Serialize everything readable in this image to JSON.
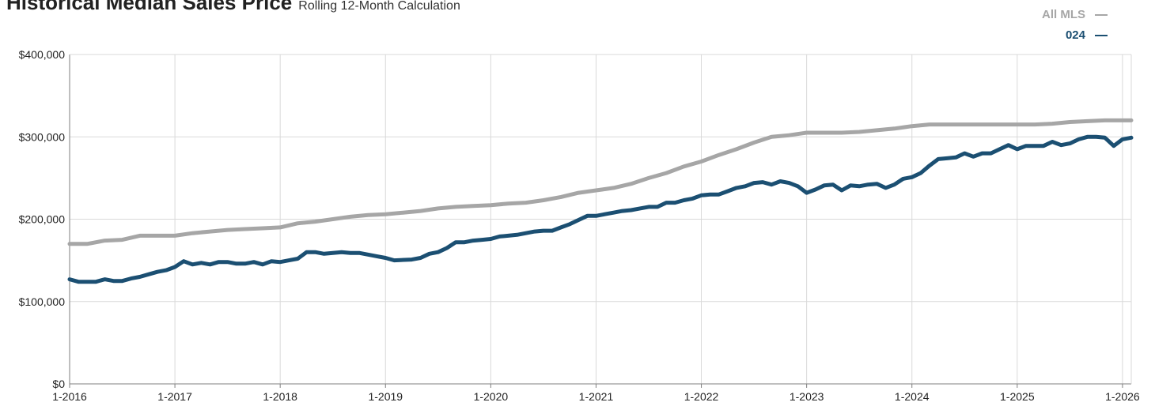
{
  "header": {
    "title": "Historical Median Sales Price",
    "subtitle": "Rolling 12-Month Calculation"
  },
  "colors": {
    "all_mls": "#a6a6a6",
    "area": "#1b4f72",
    "grid": "#d9d9d9",
    "axis": "#7f7f7f"
  },
  "chart_data": {
    "type": "line",
    "title": "Historical Median Sales Price",
    "subtitle": "Rolling 12-Month Calculation",
    "xlabel": "",
    "ylabel": "",
    "x_range": [
      "2016-01",
      "2026-02"
    ],
    "ylim": [
      0,
      400000
    ],
    "grid": true,
    "legend": "top-right",
    "y_ticks": [
      0,
      100000,
      200000,
      300000,
      400000
    ],
    "y_tick_labels": [
      "$0",
      "$100,000",
      "$200,000",
      "$300,000",
      "$400,000"
    ],
    "x_ticks": [
      "2016-01",
      "2017-01",
      "2018-01",
      "2019-01",
      "2020-01",
      "2021-01",
      "2022-01",
      "2023-01",
      "2024-01",
      "2025-01",
      "2026-01"
    ],
    "x_tick_labels": [
      "1-2016",
      "1-2017",
      "1-2018",
      "1-2019",
      "1-2020",
      "1-2021",
      "1-2022",
      "1-2023",
      "1-2024",
      "1-2025",
      "1-2026"
    ],
    "series": [
      {
        "name": "All MLS",
        "color": "#a6a6a6",
        "points": [
          [
            "2016-01",
            170000
          ],
          [
            "2016-03",
            170000
          ],
          [
            "2016-05",
            174000
          ],
          [
            "2016-07",
            175000
          ],
          [
            "2016-09",
            180000
          ],
          [
            "2016-11",
            180000
          ],
          [
            "2017-01",
            180000
          ],
          [
            "2017-03",
            183000
          ],
          [
            "2017-05",
            185000
          ],
          [
            "2017-07",
            187000
          ],
          [
            "2017-09",
            188000
          ],
          [
            "2017-11",
            189000
          ],
          [
            "2018-01",
            190000
          ],
          [
            "2018-03",
            195000
          ],
          [
            "2018-05",
            197000
          ],
          [
            "2018-07",
            200000
          ],
          [
            "2018-09",
            203000
          ],
          [
            "2018-11",
            205000
          ],
          [
            "2019-01",
            206000
          ],
          [
            "2019-03",
            208000
          ],
          [
            "2019-05",
            210000
          ],
          [
            "2019-07",
            213000
          ],
          [
            "2019-09",
            215000
          ],
          [
            "2019-11",
            216000
          ],
          [
            "2020-01",
            217000
          ],
          [
            "2020-03",
            219000
          ],
          [
            "2020-05",
            220000
          ],
          [
            "2020-07",
            223000
          ],
          [
            "2020-09",
            227000
          ],
          [
            "2020-11",
            232000
          ],
          [
            "2021-01",
            235000
          ],
          [
            "2021-03",
            238000
          ],
          [
            "2021-05",
            243000
          ],
          [
            "2021-07",
            250000
          ],
          [
            "2021-09",
            256000
          ],
          [
            "2021-11",
            264000
          ],
          [
            "2022-01",
            270000
          ],
          [
            "2022-03",
            278000
          ],
          [
            "2022-05",
            285000
          ],
          [
            "2022-07",
            293000
          ],
          [
            "2022-09",
            300000
          ],
          [
            "2022-11",
            302000
          ],
          [
            "2023-01",
            305000
          ],
          [
            "2023-03",
            305000
          ],
          [
            "2023-05",
            305000
          ],
          [
            "2023-07",
            306000
          ],
          [
            "2023-09",
            308000
          ],
          [
            "2023-11",
            310000
          ],
          [
            "2024-01",
            313000
          ],
          [
            "2024-03",
            315000
          ],
          [
            "2024-05",
            315000
          ],
          [
            "2024-07",
            315000
          ],
          [
            "2024-09",
            315000
          ],
          [
            "2024-11",
            315000
          ],
          [
            "2025-01",
            315000
          ],
          [
            "2025-03",
            315000
          ],
          [
            "2025-05",
            316000
          ],
          [
            "2025-07",
            318000
          ],
          [
            "2025-09",
            319000
          ],
          [
            "2025-11",
            320000
          ],
          [
            "2026-01",
            320000
          ],
          [
            "2026-02",
            320000
          ]
        ]
      },
      {
        "name": "024",
        "color": "#1b4f72",
        "points": [
          [
            "2016-01",
            127000
          ],
          [
            "2016-02",
            124000
          ],
          [
            "2016-04",
            124000
          ],
          [
            "2016-05",
            127000
          ],
          [
            "2016-06",
            125000
          ],
          [
            "2016-07",
            125000
          ],
          [
            "2016-08",
            128000
          ],
          [
            "2016-09",
            130000
          ],
          [
            "2016-10",
            133000
          ],
          [
            "2016-11",
            136000
          ],
          [
            "2016-12",
            138000
          ],
          [
            "2017-01",
            142000
          ],
          [
            "2017-02",
            149000
          ],
          [
            "2017-03",
            145000
          ],
          [
            "2017-04",
            147000
          ],
          [
            "2017-05",
            145000
          ],
          [
            "2017-06",
            148000
          ],
          [
            "2017-07",
            148000
          ],
          [
            "2017-08",
            146000
          ],
          [
            "2017-09",
            146000
          ],
          [
            "2017-10",
            148000
          ],
          [
            "2017-11",
            145000
          ],
          [
            "2017-12",
            149000
          ],
          [
            "2018-01",
            148000
          ],
          [
            "2018-02",
            150000
          ],
          [
            "2018-03",
            152000
          ],
          [
            "2018-04",
            160000
          ],
          [
            "2018-05",
            160000
          ],
          [
            "2018-06",
            158000
          ],
          [
            "2018-07",
            159000
          ],
          [
            "2018-08",
            160000
          ],
          [
            "2018-09",
            159000
          ],
          [
            "2018-10",
            159000
          ],
          [
            "2018-11",
            157000
          ],
          [
            "2018-12",
            155000
          ],
          [
            "2019-01",
            153000
          ],
          [
            "2019-02",
            150000
          ],
          [
            "2019-04",
            151000
          ],
          [
            "2019-05",
            153000
          ],
          [
            "2019-06",
            158000
          ],
          [
            "2019-07",
            160000
          ],
          [
            "2019-08",
            165000
          ],
          [
            "2019-09",
            172000
          ],
          [
            "2019-10",
            172000
          ],
          [
            "2019-11",
            174000
          ],
          [
            "2019-12",
            175000
          ],
          [
            "2020-01",
            176000
          ],
          [
            "2020-02",
            179000
          ],
          [
            "2020-03",
            180000
          ],
          [
            "2020-04",
            181000
          ],
          [
            "2020-05",
            183000
          ],
          [
            "2020-06",
            185000
          ],
          [
            "2020-07",
            186000
          ],
          [
            "2020-08",
            186000
          ],
          [
            "2020-09",
            190000
          ],
          [
            "2020-10",
            194000
          ],
          [
            "2020-11",
            199000
          ],
          [
            "2020-12",
            204000
          ],
          [
            "2021-01",
            204000
          ],
          [
            "2021-02",
            206000
          ],
          [
            "2021-03",
            208000
          ],
          [
            "2021-04",
            210000
          ],
          [
            "2021-05",
            211000
          ],
          [
            "2021-06",
            213000
          ],
          [
            "2021-07",
            215000
          ],
          [
            "2021-08",
            215000
          ],
          [
            "2021-09",
            220000
          ],
          [
            "2021-10",
            220000
          ],
          [
            "2021-11",
            223000
          ],
          [
            "2021-12",
            225000
          ],
          [
            "2022-01",
            229000
          ],
          [
            "2022-02",
            230000
          ],
          [
            "2022-03",
            230000
          ],
          [
            "2022-04",
            234000
          ],
          [
            "2022-05",
            238000
          ],
          [
            "2022-06",
            240000
          ],
          [
            "2022-07",
            244000
          ],
          [
            "2022-08",
            245000
          ],
          [
            "2022-09",
            242000
          ],
          [
            "2022-10",
            246000
          ],
          [
            "2022-11",
            244000
          ],
          [
            "2022-12",
            240000
          ],
          [
            "2023-01",
            232000
          ],
          [
            "2023-02",
            236000
          ],
          [
            "2023-03",
            241000
          ],
          [
            "2023-04",
            242000
          ],
          [
            "2023-05",
            235000
          ],
          [
            "2023-06",
            241000
          ],
          [
            "2023-07",
            240000
          ],
          [
            "2023-08",
            242000
          ],
          [
            "2023-09",
            243000
          ],
          [
            "2023-10",
            238000
          ],
          [
            "2023-11",
            242000
          ],
          [
            "2023-12",
            249000
          ],
          [
            "2024-01",
            251000
          ],
          [
            "2024-02",
            256000
          ],
          [
            "2024-03",
            265000
          ],
          [
            "2024-04",
            273000
          ],
          [
            "2024-05",
            274000
          ],
          [
            "2024-06",
            275000
          ],
          [
            "2024-07",
            280000
          ],
          [
            "2024-08",
            276000
          ],
          [
            "2024-09",
            280000
          ],
          [
            "2024-10",
            280000
          ],
          [
            "2024-11",
            285000
          ],
          [
            "2024-12",
            290000
          ],
          [
            "2025-01",
            285000
          ],
          [
            "2025-02",
            289000
          ],
          [
            "2025-03",
            289000
          ],
          [
            "2025-04",
            289000
          ],
          [
            "2025-05",
            294000
          ],
          [
            "2025-06",
            290000
          ],
          [
            "2025-07",
            292000
          ],
          [
            "2025-08",
            297000
          ],
          [
            "2025-09",
            300000
          ],
          [
            "2025-10",
            300000
          ],
          [
            "2025-11",
            299000
          ],
          [
            "2025-12",
            289000
          ],
          [
            "2026-01",
            297000
          ],
          [
            "2026-02",
            299000
          ]
        ]
      }
    ]
  }
}
